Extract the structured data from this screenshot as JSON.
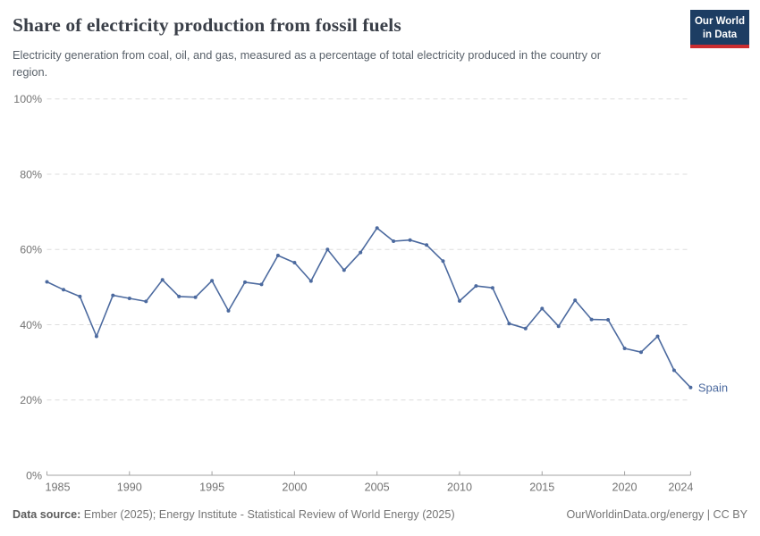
{
  "header": {
    "title": "Share of electricity production from fossil fuels",
    "subtitle": "Electricity generation from coal, oil, and gas, measured as a percentage of total electricity produced in the country or region.",
    "logo": {
      "line1": "Our World",
      "line2": "in Data"
    }
  },
  "chart_data": {
    "type": "line",
    "title": "Share of electricity production from fossil fuels",
    "x": [
      1985,
      1986,
      1987,
      1988,
      1989,
      1990,
      1991,
      1992,
      1993,
      1994,
      1995,
      1996,
      1997,
      1998,
      1999,
      2000,
      2001,
      2002,
      2003,
      2004,
      2005,
      2006,
      2007,
      2008,
      2009,
      2010,
      2011,
      2012,
      2013,
      2014,
      2015,
      2016,
      2017,
      2018,
      2019,
      2020,
      2021,
      2022,
      2023,
      2024
    ],
    "series": [
      {
        "name": "Spain",
        "color": "#4c6a9f",
        "values": [
          51.4,
          49.3,
          47.5,
          36.9,
          47.8,
          47.0,
          46.2,
          51.9,
          47.5,
          47.3,
          51.7,
          43.7,
          51.3,
          50.7,
          58.4,
          56.5,
          51.6,
          60.0,
          54.5,
          59.2,
          65.7,
          62.2,
          62.5,
          61.2,
          56.9,
          46.3,
          50.3,
          49.8,
          40.3,
          39.0,
          44.3,
          39.6,
          46.5,
          41.4,
          41.3,
          33.7,
          32.7,
          36.9,
          27.9,
          23.3
        ]
      }
    ],
    "xlabel": "",
    "ylabel": "",
    "ylim": [
      0,
      100
    ],
    "yticks": [
      0,
      20,
      40,
      60,
      80,
      100
    ],
    "ytick_suffix": "%",
    "xticks": [
      1985,
      1990,
      1995,
      2000,
      2005,
      2010,
      2015,
      2020,
      2024
    ],
    "grid": true,
    "grid_style": "dashed",
    "legend_position": "end-of-line"
  },
  "colors": {
    "line": "#4c6a9f",
    "grid": "#dedede",
    "axis": "#a3a3a3",
    "tick_label": "#737373",
    "title": "#3a3f48",
    "subtitle": "#5a626b",
    "logo_bg": "#1d3d63",
    "logo_red": "#cb2d30"
  },
  "footer": {
    "source_label": "Data source:",
    "source_text": "Ember (2025); Energy Institute - Statistical Review of World Energy (2025)",
    "credit": "OurWorldinData.org/energy | CC BY"
  }
}
